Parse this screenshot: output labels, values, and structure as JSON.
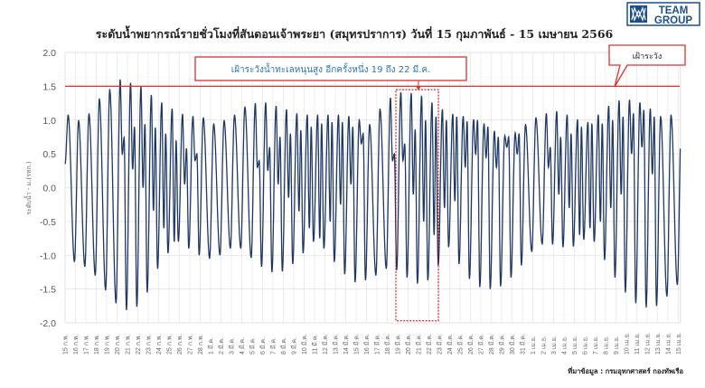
{
  "logo": {
    "line1": "TEAM",
    "line2": "GROUP",
    "color": "#1a4f8f"
  },
  "source_note": "ที่มาข้อมูล : กรมอุทกศาสตร์ กองทัพเรือ",
  "chart_data": {
    "type": "line",
    "title": "ระดับน้ำพยากรณ์รายชั่วโมงที่สันดอนเจ้าพระยา (สมุทรปราการ) วันที่ 15 กุมภาพันธ์ - 15 เมษายน 2566",
    "ylabel": "ระดับน้ำ - ม.(รทก.)",
    "xlabel": "",
    "ylim": [
      -2.0,
      2.0
    ],
    "yticks": [
      "2.0",
      "1.5",
      "1.0",
      "0.5",
      "0.0",
      "-0.5",
      "-1.0",
      "-1.5",
      "-2.0"
    ],
    "ytick_values": [
      2.0,
      1.5,
      1.0,
      0.5,
      0.0,
      -0.5,
      -1.0,
      -1.5,
      -2.0
    ],
    "grid": true,
    "line_color": "#1f3864",
    "categories": [
      "15 ก.พ.",
      "16 ก.พ.",
      "17 ก.พ.",
      "18 ก.พ.",
      "19 ก.พ.",
      "20 ก.พ.",
      "21 ก.พ.",
      "22 ก.พ.",
      "23 ก.พ.",
      "24 ก.พ.",
      "25 ก.พ.",
      "26 ก.พ.",
      "27 ก.พ.",
      "28 ก.พ.",
      "1 มี.ค.",
      "2 มี.ค.",
      "3 มี.ค.",
      "4 มี.ค.",
      "5 มี.ค.",
      "6 มี.ค.",
      "7 มี.ค.",
      "8 มี.ค.",
      "9 มี.ค.",
      "10 มี.ค.",
      "11 มี.ค.",
      "12 มี.ค.",
      "13 มี.ค.",
      "14 มี.ค.",
      "15 มี.ค.",
      "16 มี.ค.",
      "17 มี.ค.",
      "18 มี.ค.",
      "19 มี.ค.",
      "20 มี.ค.",
      "21 มี.ค.",
      "22 มี.ค.",
      "23 มี.ค.",
      "24 มี.ค.",
      "25 มี.ค.",
      "26 มี.ค.",
      "27 มี.ค.",
      "28 มี.ค.",
      "29 มี.ค.",
      "30 มี.ค.",
      "31 มี.ค.",
      "1 เม.ย.",
      "2 เม.ย.",
      "3 เม.ย.",
      "4 เม.ย.",
      "5 เม.ย.",
      "6 เม.ย.",
      "7 เม.ย.",
      "8 เม.ย.",
      "9 เม.ย.",
      "10 เม.ย.",
      "11 เม.ย.",
      "12 เม.ย.",
      "13 เม.ย.",
      "14 เม.ย.",
      "15 เม.ย."
    ],
    "start_value": 0.35,
    "series": [
      {
        "name": "daily_high",
        "values": [
          1.08,
          1.0,
          1.1,
          1.32,
          1.46,
          1.6,
          1.55,
          1.5,
          1.37,
          1.26,
          1.17,
          1.09,
          1.06,
          1.04,
          0.95,
          1.0,
          1.08,
          1.2,
          1.25,
          1.26,
          1.21,
          1.16,
          1.1,
          1.08,
          1.08,
          1.08,
          1.08,
          1.06,
          1.0,
          0.94,
          1.17,
          1.33,
          1.41,
          1.4,
          1.36,
          1.26,
          1.16,
          1.09,
          1.06,
          1.01,
          0.95,
          0.84,
          0.77,
          0.81,
          0.94,
          1.04,
          1.1,
          1.13,
          1.08,
          1.01,
          0.97,
          1.08,
          1.21,
          1.29,
          1.3,
          1.26,
          1.17,
          1.06,
          1.08,
          1.1
        ]
      },
      {
        "name": "secondary_low",
        "values": [
          0.6,
          0.6,
          0.7,
          0.8,
          0.8,
          0.5,
          0.27,
          0.0,
          -0.34,
          -0.6,
          -0.8,
          0.05,
          0.4,
          0.6,
          0.6,
          0.0,
          0.0,
          0.1,
          0.3,
          0.25,
          0.05,
          -0.15,
          -0.35,
          -0.6,
          -0.75,
          -0.5,
          -0.25,
          0.05,
          0.65,
          0.1,
          0.1,
          0.4,
          0.4,
          -0.1,
          -0.5,
          -0.7,
          -0.3,
          -0.2,
          0.3,
          0.5,
          0.45,
          0.3,
          0.6,
          0.5,
          0.1,
          0.0,
          0.3,
          -0.1,
          -0.3,
          -0.7,
          -0.6,
          -0.5,
          -0.3,
          -0.1,
          0.5,
          0.6,
          0.2,
          0.0,
          0.0,
          0.0
        ]
      },
      {
        "name": "secondary_high",
        "values": [
          0.6,
          0.6,
          0.7,
          0.8,
          0.8,
          0.74,
          0.9,
          0.94,
          0.89,
          0.8,
          0.7,
          0.58,
          0.5,
          0.6,
          0.6,
          0.0,
          0.0,
          0.1,
          0.4,
          0.6,
          0.75,
          0.8,
          0.85,
          0.9,
          0.95,
          0.97,
          0.97,
          0.9,
          0.8,
          0.1,
          0.1,
          0.5,
          0.65,
          0.86,
          1.0,
          1.05,
          1.0,
          1.05,
          0.98,
          1.0,
          0.9,
          0.75,
          0.75,
          0.8,
          0.1,
          0.0,
          0.6,
          0.75,
          0.8,
          0.9,
          0.95,
          0.95,
          1.0,
          1.05,
          1.1,
          1.15,
          1.05,
          0.0,
          0.0,
          0.0
        ]
      },
      {
        "name": "daily_low",
        "values": [
          -1.1,
          -1.17,
          -1.3,
          -1.52,
          -1.71,
          -1.81,
          -1.76,
          -1.55,
          -1.2,
          -0.97,
          -0.8,
          -0.9,
          -1.0,
          -1.05,
          -1.0,
          -0.9,
          -0.9,
          -1.04,
          -1.17,
          -1.25,
          -1.24,
          -1.13,
          -0.97,
          -0.8,
          -0.9,
          -1.1,
          -1.28,
          -1.4,
          -1.37,
          -1.3,
          -1.2,
          -1.22,
          -1.33,
          -1.42,
          -1.37,
          -1.15,
          -0.88,
          -1.13,
          -1.35,
          -1.47,
          -1.5,
          -1.46,
          -1.33,
          -1.15,
          -0.95,
          -0.84,
          -0.84,
          -0.88,
          -0.87,
          -0.77,
          -0.8,
          -1.07,
          -1.33,
          -1.55,
          -1.71,
          -1.77,
          -1.75,
          -1.61,
          -1.44,
          -1.3
        ]
      }
    ],
    "annotations": {
      "watch_level": {
        "value": 1.5,
        "label": "เฝ้าระวัง",
        "color": "#e03030"
      },
      "watch_period": {
        "label": "เฝ้าระวังน้ำทะเลหนุนสูง อีกครั้งหนึ่ง 19 ถึง 22 มี.ค.",
        "from": "19 มี.ค.",
        "to": "22 มี.ค."
      }
    }
  }
}
